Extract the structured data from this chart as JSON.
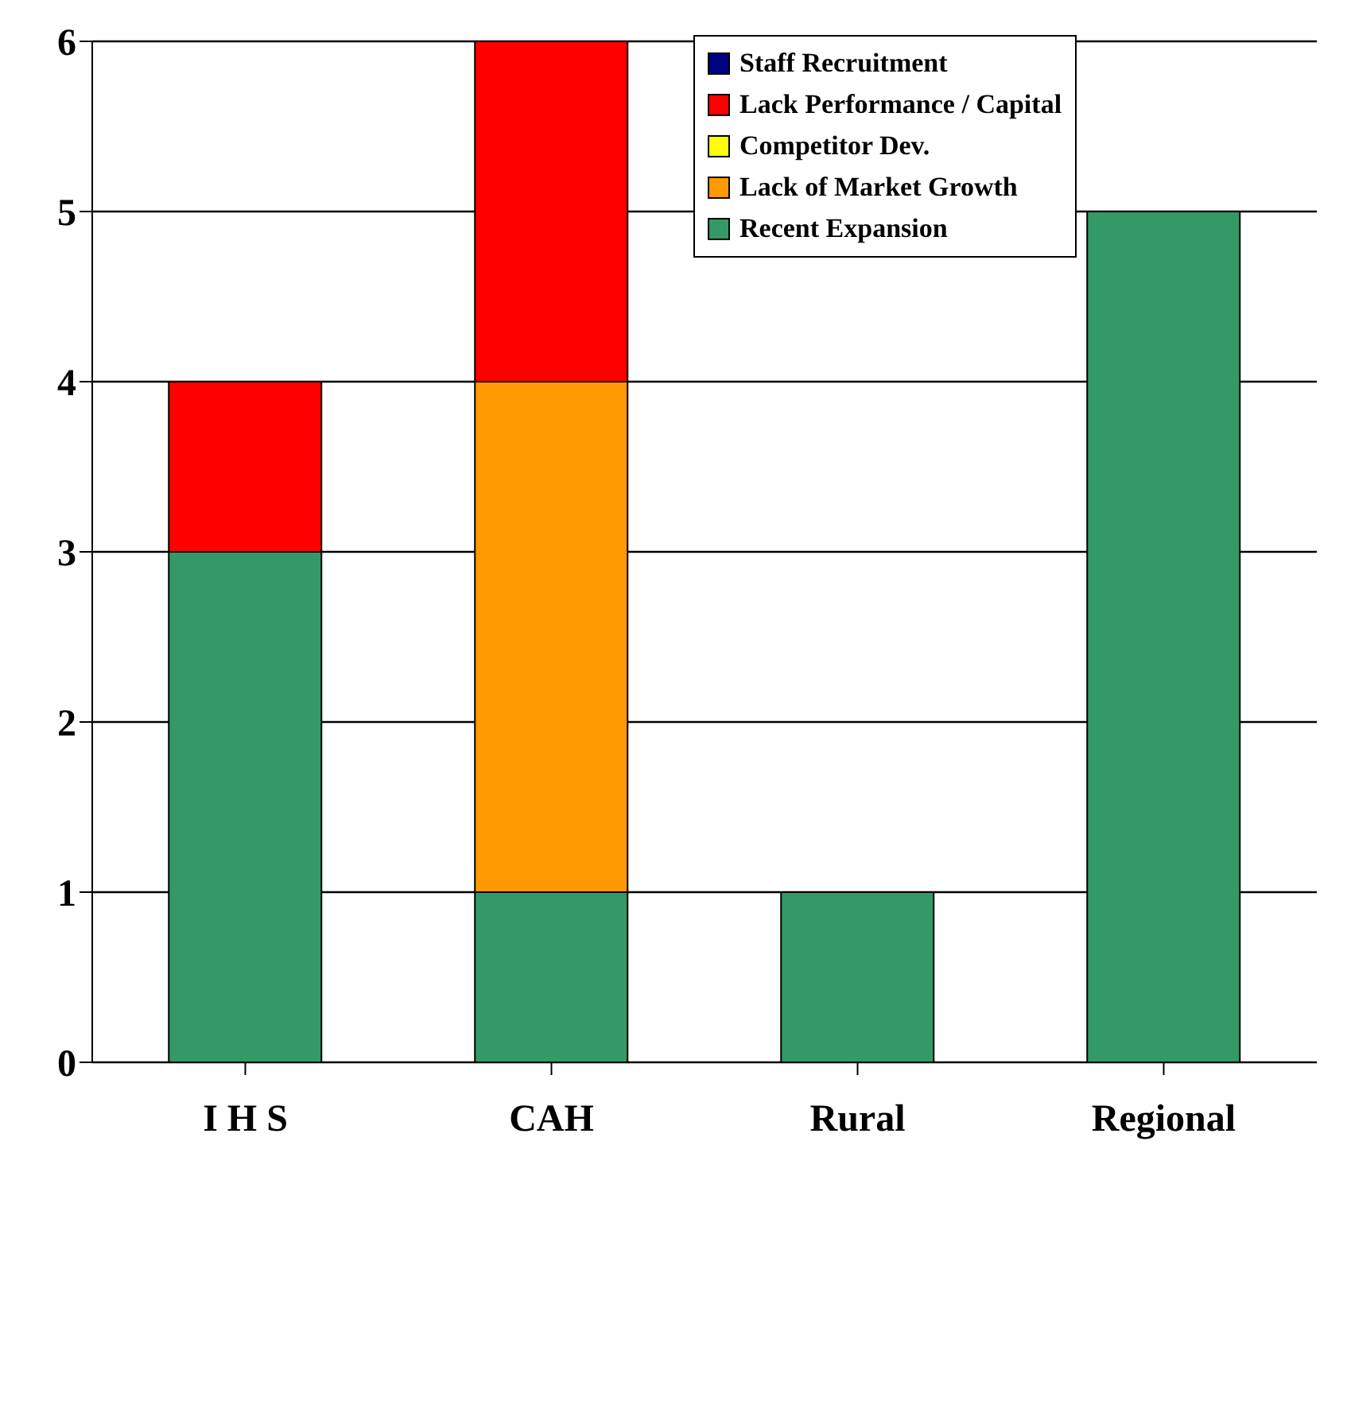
{
  "chart_data": {
    "type": "bar",
    "stacked": true,
    "categories": [
      "I H S",
      "CAH",
      "Rural",
      "Regional"
    ],
    "series": [
      {
        "name": "Recent Expansion",
        "color": "#339966",
        "values": [
          3,
          1,
          1,
          5
        ]
      },
      {
        "name": "Lack of Market Growth",
        "color": "#ff9900",
        "values": [
          0,
          3,
          0,
          0
        ]
      },
      {
        "name": "Competitor Dev.",
        "color": "#ffff00",
        "values": [
          0,
          0,
          0,
          0
        ]
      },
      {
        "name": "Lack Performance / Capital",
        "color": "#ff0000",
        "values": [
          1,
          2,
          0,
          0
        ]
      },
      {
        "name": "Staff Recruitment",
        "color": "#000080",
        "values": [
          0,
          0,
          0,
          0
        ]
      }
    ],
    "ylim": [
      0,
      6
    ],
    "yticks": [
      0,
      1,
      2,
      3,
      4,
      5,
      6
    ],
    "grid": "y",
    "legend": "top"
  }
}
